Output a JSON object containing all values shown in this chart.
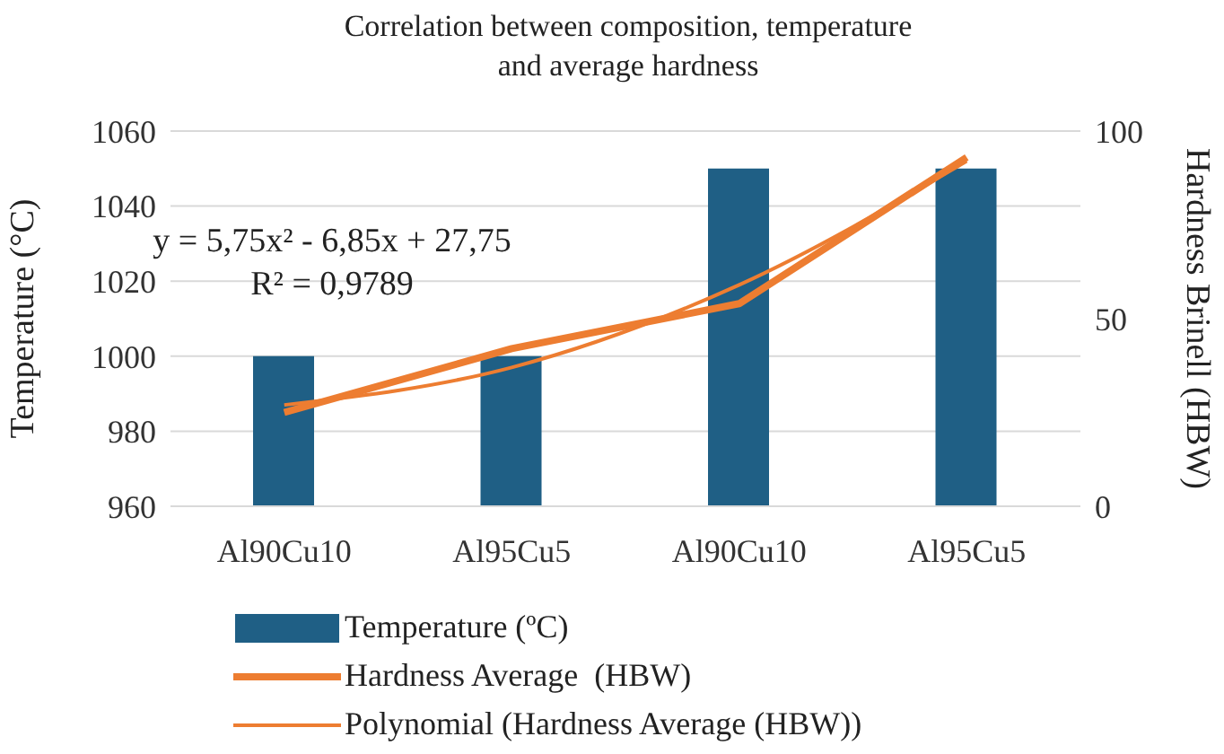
{
  "chart_data": {
    "type": "bar",
    "title": "Correlation between composition, temperature and average hardness",
    "ylabel": "Temperature (°C)",
    "y2label": "Hardness Brinell (HBW)",
    "categories": [
      "Al90Cu10",
      "Al95Cu5",
      "Al90Cu10",
      "Al95Cu5"
    ],
    "series": [
      {
        "name": "Temperature (ºC)",
        "color": "#1f5f85",
        "values": [
          1000,
          1000,
          1050,
          1050
        ]
      },
      {
        "name": "Hardness Average  (HBW)",
        "type": "line",
        "axis": "y2",
        "color": "#ed7d31",
        "values": [
          25,
          42,
          54,
          93
        ]
      },
      {
        "name": "Polynomial (Hardness Average (HBW))",
        "type": "line",
        "axis": "y2",
        "color": "#ed7d31",
        "values": [
          27,
          37,
          59,
          92
        ]
      }
    ],
    "ylim": [
      960,
      1060
    ],
    "yticks": [
      960,
      980,
      1000,
      1020,
      1040,
      1060
    ],
    "y2lim": [
      0,
      100
    ],
    "y2ticks": [
      0,
      50,
      100
    ],
    "grid": "y",
    "legend": "bottom",
    "annotations": [
      "y = 5,75x² - 6,85x + 27,75",
      "R² = 0,9789"
    ]
  }
}
